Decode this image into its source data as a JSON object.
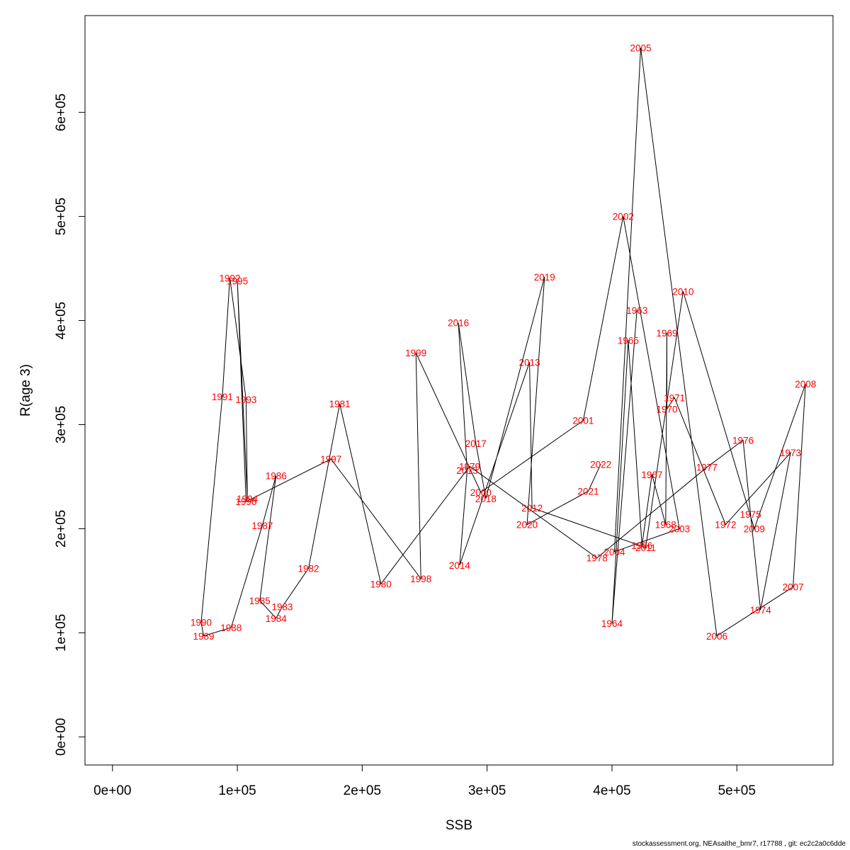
{
  "chart_data": {
    "type": "line",
    "xlabel": "SSB",
    "ylabel": "R(age 3)",
    "xlim": [
      -22000,
      577000
    ],
    "ylim": [
      -27000,
      693000
    ],
    "xticks": [
      0,
      100000,
      200000,
      300000,
      400000,
      500000
    ],
    "xtick_labels": [
      "0e+00",
      "1e+05",
      "2e+05",
      "3e+05",
      "4e+05",
      "5e+05"
    ],
    "yticks": [
      0,
      100000,
      200000,
      300000,
      400000,
      500000,
      600000
    ],
    "ytick_labels": [
      "0e+00",
      "1e+05",
      "2e+05",
      "3e+05",
      "4e+05",
      "5e+05",
      "6e+05"
    ],
    "label_color": "#ff0000",
    "line_color": "#000000",
    "points": [
      {
        "label": "1963",
        "x": 420000,
        "y": 410000
      },
      {
        "label": "1964",
        "x": 400000,
        "y": 109000
      },
      {
        "label": "1965",
        "x": 413000,
        "y": 381000
      },
      {
        "label": "1966",
        "x": 424000,
        "y": 184000
      },
      {
        "label": "1967",
        "x": 432000,
        "y": 252000
      },
      {
        "label": "1968",
        "x": 443000,
        "y": 204000
      },
      {
        "label": "1969",
        "x": 444000,
        "y": 388000
      },
      {
        "label": "1970",
        "x": 444000,
        "y": 315000
      },
      {
        "label": "1971",
        "x": 450000,
        "y": 326000
      },
      {
        "label": "1972",
        "x": 491000,
        "y": 204000
      },
      {
        "label": "1973",
        "x": 543000,
        "y": 273000
      },
      {
        "label": "1974",
        "x": 519000,
        "y": 122000
      },
      {
        "label": "1975",
        "x": 511000,
        "y": 214000
      },
      {
        "label": "1976",
        "x": 505000,
        "y": 285000
      },
      {
        "label": "1977",
        "x": 476000,
        "y": 259000
      },
      {
        "label": "1978",
        "x": 388000,
        "y": 172000
      },
      {
        "label": "1979",
        "x": 286000,
        "y": 260000
      },
      {
        "label": "1980",
        "x": 215000,
        "y": 147000
      },
      {
        "label": "1981",
        "x": 182000,
        "y": 320000
      },
      {
        "label": "1982",
        "x": 157000,
        "y": 162000
      },
      {
        "label": "1983",
        "x": 136000,
        "y": 125000
      },
      {
        "label": "1984",
        "x": 131000,
        "y": 114000
      },
      {
        "label": "1985",
        "x": 118000,
        "y": 131000
      },
      {
        "label": "1986",
        "x": 131000,
        "y": 251000
      },
      {
        "label": "1987",
        "x": 120000,
        "y": 203000
      },
      {
        "label": "1988",
        "x": 95000,
        "y": 105000
      },
      {
        "label": "1989",
        "x": 73000,
        "y": 97000
      },
      {
        "label": "1990",
        "x": 71000,
        "y": 110000
      },
      {
        "label": "1991",
        "x": 88000,
        "y": 327000
      },
      {
        "label": "1992",
        "x": 94000,
        "y": 441000
      },
      {
        "label": "1993",
        "x": 107000,
        "y": 324000
      },
      {
        "label": "1994",
        "x": 108000,
        "y": 229000
      },
      {
        "label": "1995",
        "x": 100000,
        "y": 438000
      },
      {
        "label": "1996",
        "x": 107000,
        "y": 226000
      },
      {
        "label": "1997",
        "x": 175000,
        "y": 267000
      },
      {
        "label": "1998",
        "x": 247000,
        "y": 152000
      },
      {
        "label": "1999",
        "x": 243000,
        "y": 369000
      },
      {
        "label": "2000",
        "x": 295000,
        "y": 235000
      },
      {
        "label": "2001",
        "x": 377000,
        "y": 304000
      },
      {
        "label": "2002",
        "x": 409000,
        "y": 500000
      },
      {
        "label": "2003",
        "x": 454000,
        "y": 200000
      },
      {
        "label": "2004",
        "x": 402000,
        "y": 178000
      },
      {
        "label": "2005",
        "x": 423000,
        "y": 662000
      },
      {
        "label": "2006",
        "x": 484000,
        "y": 97000
      },
      {
        "label": "2007",
        "x": 545000,
        "y": 144000
      },
      {
        "label": "2008",
        "x": 555000,
        "y": 339000
      },
      {
        "label": "2009",
        "x": 514000,
        "y": 200000
      },
      {
        "label": "2010",
        "x": 457000,
        "y": 428000
      },
      {
        "label": "2011",
        "x": 427000,
        "y": 182000
      },
      {
        "label": "2012",
        "x": 336000,
        "y": 220000
      },
      {
        "label": "2013",
        "x": 334000,
        "y": 360000
      },
      {
        "label": "2014",
        "x": 278000,
        "y": 165000
      },
      {
        "label": "2015",
        "x": 284000,
        "y": 256000
      },
      {
        "label": "2016",
        "x": 277000,
        "y": 398000
      },
      {
        "label": "2017",
        "x": 291000,
        "y": 282000
      },
      {
        "label": "2018",
        "x": 299000,
        "y": 229000
      },
      {
        "label": "2019",
        "x": 346000,
        "y": 442000
      },
      {
        "label": "2020",
        "x": 332000,
        "y": 204000
      },
      {
        "label": "2021",
        "x": 381000,
        "y": 236000
      },
      {
        "label": "2022",
        "x": 391000,
        "y": 262000
      }
    ]
  },
  "footer": "stockassessment.org, NEAsaithe_bmr7, r17788 , git: ec2c2a0c6dde"
}
